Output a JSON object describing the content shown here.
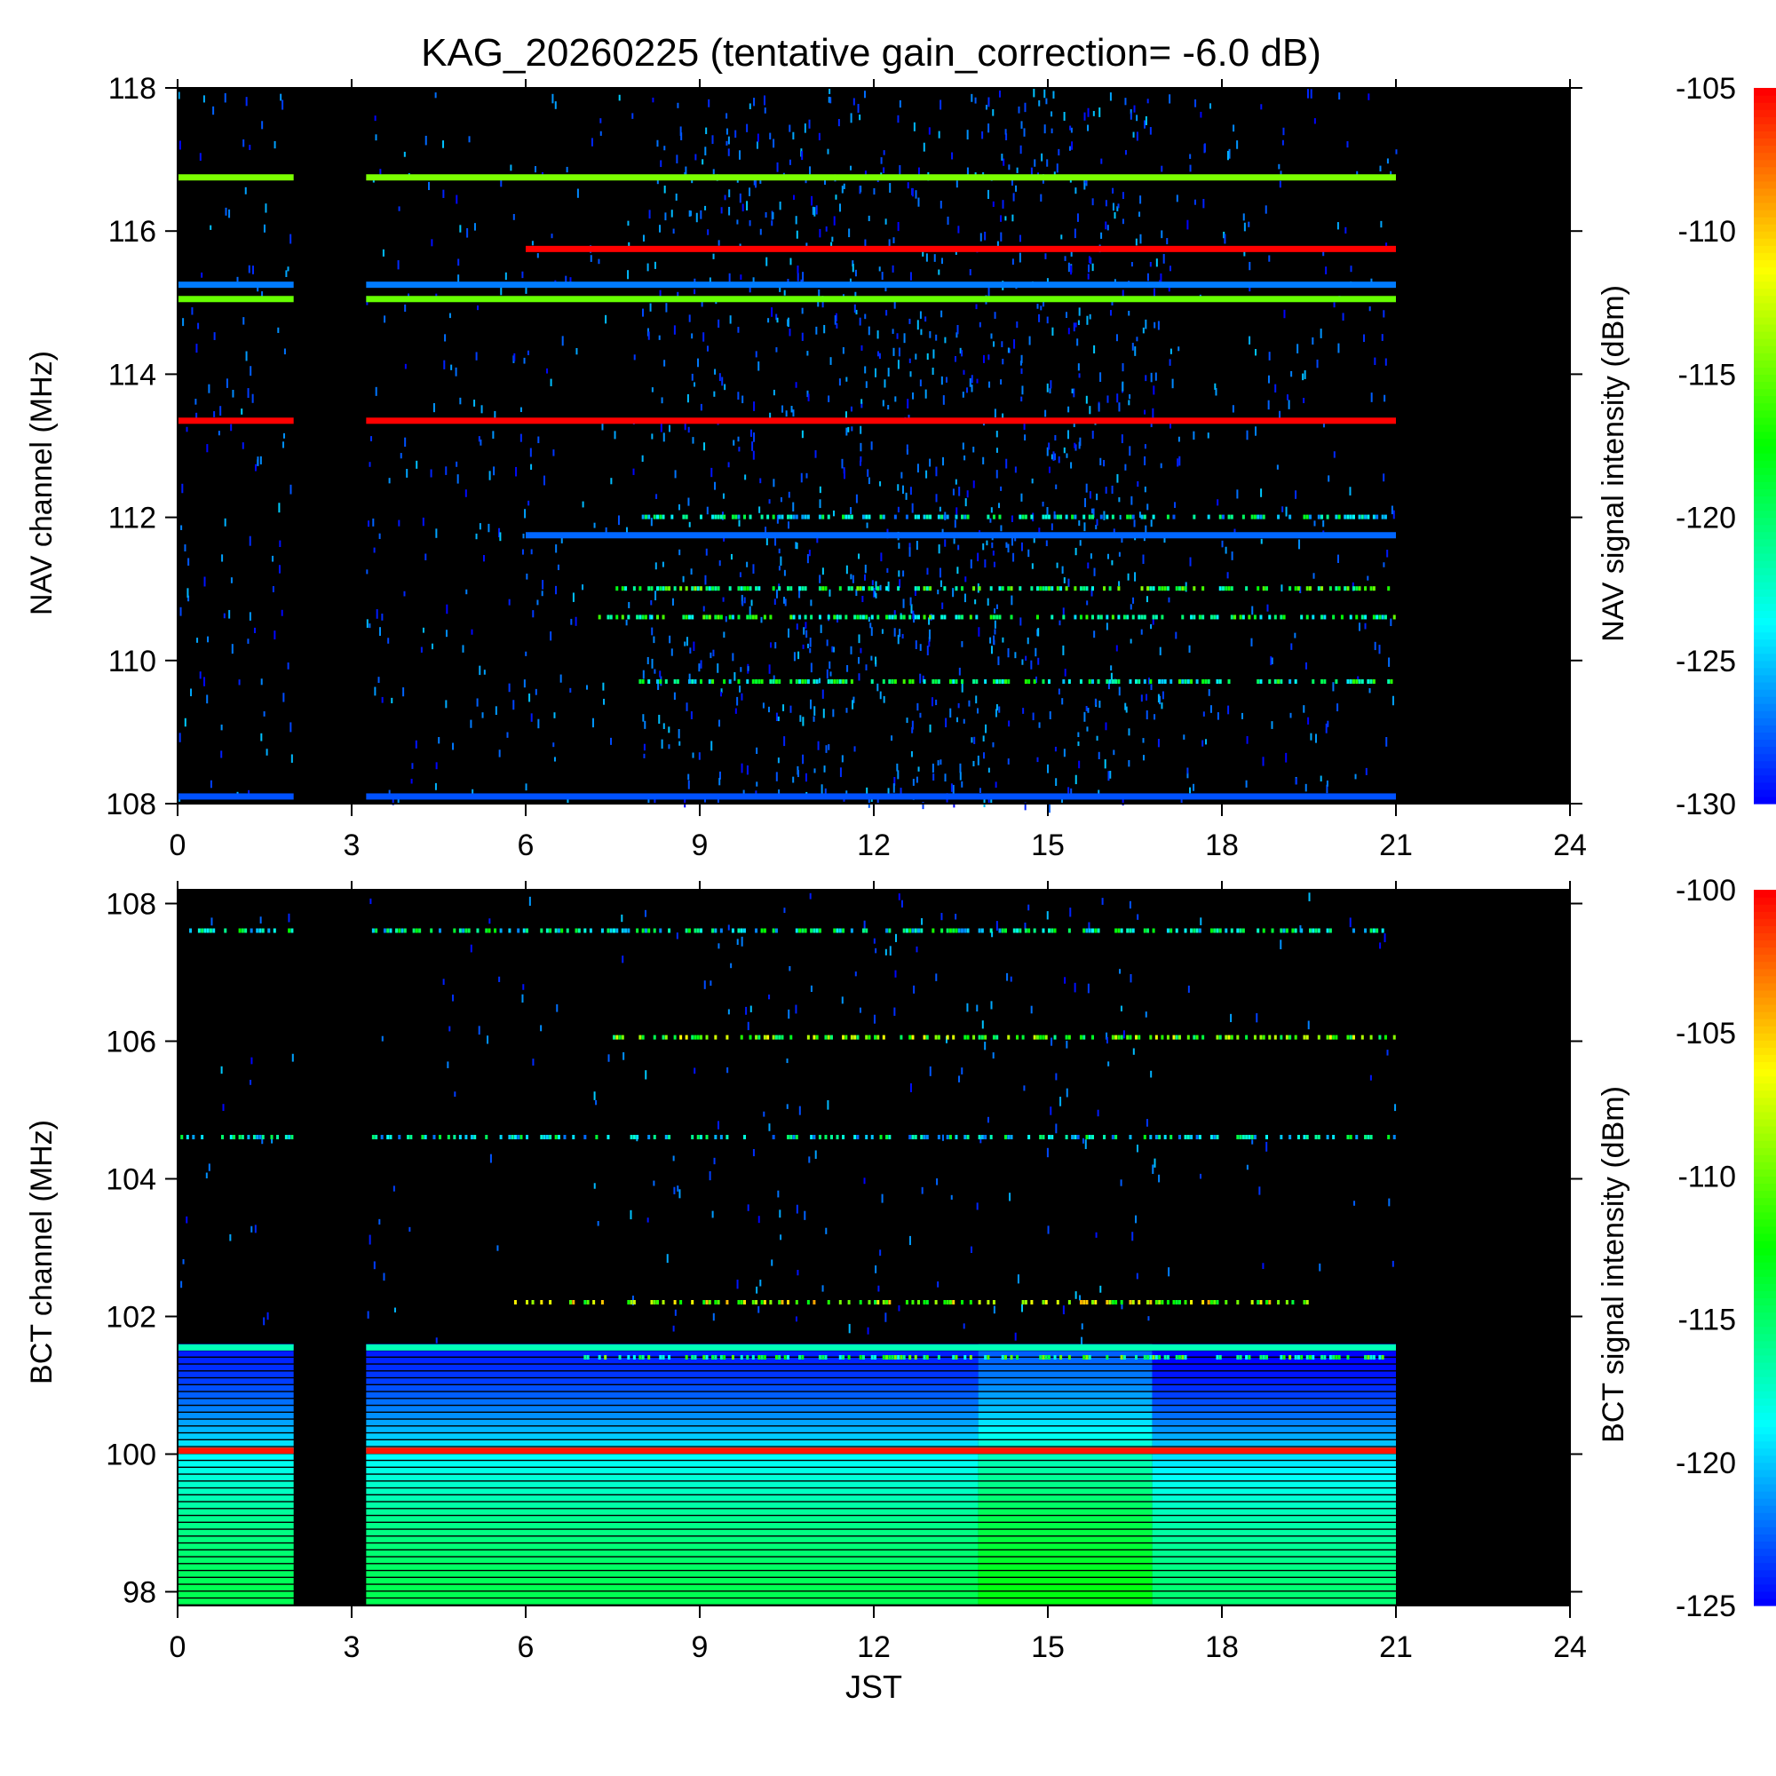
{
  "title": "KAG_20260225 (tentative gain_correction= -6.0 dB)",
  "colors": {
    "background": "#000000",
    "colormap": [
      "#0000ff",
      "#0080ff",
      "#00ffff",
      "#00ff80",
      "#00ff00",
      "#80ff00",
      "#ffff00",
      "#ff8000",
      "#ff0000"
    ]
  },
  "chart_data": [
    {
      "type": "heatmap",
      "name": "NAV",
      "ylabel": "NAV channel (MHz)",
      "xlabel": "",
      "xlim": [
        0,
        24
      ],
      "ylim": [
        108,
        118
      ],
      "xticks": [
        "0",
        "3",
        "6",
        "9",
        "12",
        "15",
        "18",
        "21",
        "24"
      ],
      "yticks": [
        "108",
        "110",
        "112",
        "114",
        "116",
        "118"
      ],
      "data_time_range": [
        0,
        21
      ],
      "gap": [
        2.0,
        3.25
      ],
      "colorbar": {
        "label": "NAV signal intensity (dBm)",
        "range": [
          -130,
          -105
        ],
        "ticks": [
          "-105",
          "-110",
          "-115",
          "-120",
          "-125",
          "-130"
        ]
      },
      "continuous_lines": [
        {
          "freq": 116.75,
          "start": 0,
          "end": 21,
          "dbm": -114.5
        },
        {
          "freq": 115.75,
          "start": 6,
          "end": 21,
          "dbm": -105
        },
        {
          "freq": 115.25,
          "start": 0,
          "end": 21,
          "dbm": -127
        },
        {
          "freq": 115.05,
          "start": 0,
          "end": 21,
          "dbm": -115
        },
        {
          "freq": 113.35,
          "start": 0,
          "end": 21,
          "dbm": -105
        },
        {
          "freq": 111.75,
          "start": 6,
          "end": 21,
          "dbm": -127.5
        },
        {
          "freq": 108.1,
          "start": 0,
          "end": 21,
          "dbm": -128
        }
      ],
      "intermittent_lines": [
        {
          "freq": 111.0,
          "start": 7.5,
          "end": 21,
          "dbm": -119
        },
        {
          "freq": 110.6,
          "start": 7.2,
          "end": 21,
          "dbm": -120
        },
        {
          "freq": 109.7,
          "start": 7.8,
          "end": 21,
          "dbm": -121
        },
        {
          "freq": 112.0,
          "start": 8.0,
          "end": 21,
          "dbm": -123
        }
      ],
      "busy_window": [
        13.8,
        16.8
      ]
    },
    {
      "type": "heatmap",
      "name": "BCT",
      "ylabel": "BCT channel (MHz)",
      "xlabel": "JST",
      "xlim": [
        0,
        24
      ],
      "ylim": [
        97.8,
        108.2
      ],
      "xticks": [
        "0",
        "3",
        "6",
        "9",
        "12",
        "15",
        "18",
        "21",
        "24"
      ],
      "yticks": [
        "98",
        "100",
        "102",
        "104",
        "106",
        "108"
      ],
      "data_time_range": [
        0,
        21
      ],
      "gap": [
        2.0,
        3.25
      ],
      "colorbar": {
        "label": "BCT signal intensity (dBm)",
        "range": [
          -125,
          -100
        ],
        "ticks": [
          "-100",
          "-105",
          "-110",
          "-115",
          "-120",
          "-125"
        ]
      },
      "continuous_lines": [
        {
          "freq": 101.55,
          "start": 0,
          "end": 21,
          "dbm": -117
        },
        {
          "freq": 100.05,
          "start": 0,
          "end": 21,
          "dbm": -100.5
        }
      ],
      "intermittent_lines": [
        {
          "freq": 107.6,
          "start": 0.2,
          "end": 21,
          "dbm": -117
        },
        {
          "freq": 106.05,
          "start": 7.5,
          "end": 21,
          "dbm": -111
        },
        {
          "freq": 104.6,
          "start": 0,
          "end": 21,
          "dbm": -118
        },
        {
          "freq": 102.2,
          "start": 5.8,
          "end": 19.5,
          "dbm": -109
        },
        {
          "freq": 101.4,
          "start": 7.0,
          "end": 21,
          "dbm": -114
        }
      ],
      "background_gradient": [
        {
          "freq": 98.0,
          "dbm": -114.5
        },
        {
          "freq": 99.0,
          "dbm": -116
        },
        {
          "freq": 100.0,
          "dbm": -119
        },
        {
          "freq": 100.5,
          "dbm": -121.5
        },
        {
          "freq": 101.0,
          "dbm": -123.5
        },
        {
          "freq": 101.5,
          "dbm": -124.5
        }
      ]
    }
  ]
}
